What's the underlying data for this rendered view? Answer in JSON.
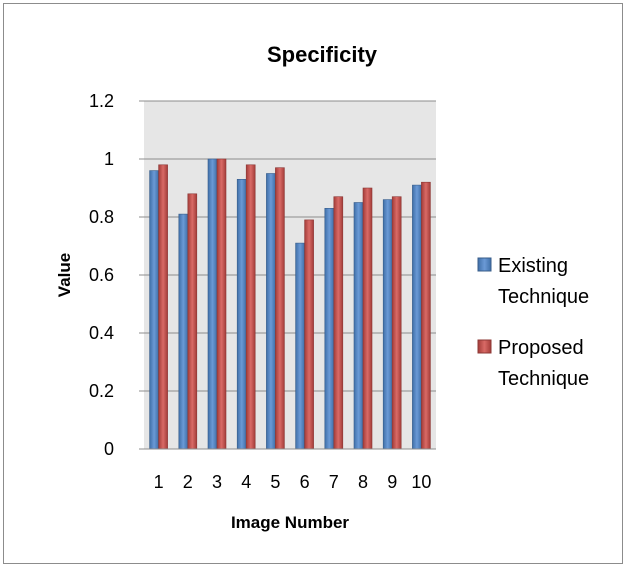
{
  "chart_data": {
    "type": "bar",
    "title": "Specificity",
    "xlabel": "Image Number",
    "ylabel": "Value",
    "categories": [
      "1",
      "2",
      "3",
      "4",
      "5",
      "6",
      "7",
      "8",
      "9",
      "10"
    ],
    "ylim": [
      0,
      1.2
    ],
    "yticks": [
      "0",
      "0.2",
      "0.4",
      "0.6",
      "0.8",
      "1",
      "1.2"
    ],
    "grid": true,
    "legend_position": "right",
    "series": [
      {
        "name": "Existing Technique",
        "legend_lines": [
          "Existing",
          "Technique"
        ],
        "color": "#4f81bd",
        "values": [
          0.96,
          0.81,
          1.0,
          0.93,
          0.95,
          0.71,
          0.83,
          0.85,
          0.86,
          0.91
        ]
      },
      {
        "name": "Proposed Technique",
        "legend_lines": [
          "Proposed",
          "Technique"
        ],
        "color": "#c0504d",
        "values": [
          0.98,
          0.88,
          1.0,
          0.98,
          0.97,
          0.79,
          0.87,
          0.9,
          0.87,
          0.92
        ]
      }
    ]
  }
}
